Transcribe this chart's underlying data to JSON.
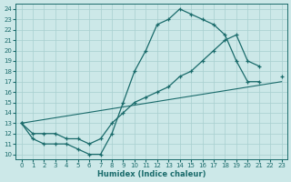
{
  "xlabel": "Humidex (Indice chaleur)",
  "bg_color": "#cce8e8",
  "grid_color": "#a8cfcf",
  "line_color": "#1a6b6b",
  "xlim": [
    -0.5,
    23.5
  ],
  "ylim": [
    9.5,
    24.5
  ],
  "xticks": [
    0,
    1,
    2,
    3,
    4,
    5,
    6,
    7,
    8,
    9,
    10,
    11,
    12,
    13,
    14,
    15,
    16,
    17,
    18,
    19,
    20,
    21,
    22,
    23
  ],
  "yticks": [
    10,
    11,
    12,
    13,
    14,
    15,
    16,
    17,
    18,
    19,
    20,
    21,
    22,
    23,
    24
  ],
  "line1_x": [
    0,
    1,
    2,
    3,
    4,
    5,
    6,
    7,
    8,
    9,
    10,
    11,
    12,
    13,
    14,
    15,
    16,
    17,
    18,
    19,
    20,
    21
  ],
  "line1_y": [
    13,
    11.5,
    11,
    11,
    11,
    10.5,
    10,
    10,
    12,
    15,
    18,
    20,
    22.5,
    23,
    24,
    23.5,
    23,
    22.5,
    21.5,
    19,
    17,
    17
  ],
  "line2_x": [
    0,
    1,
    2,
    3,
    4,
    5,
    6,
    7,
    8,
    9,
    10,
    11,
    12,
    13,
    14,
    15,
    16,
    17,
    18,
    19,
    20,
    21,
    22,
    23
  ],
  "line2_y": [
    13,
    12,
    12,
    12,
    11.5,
    11.5,
    11,
    11.5,
    13,
    14,
    15,
    15.5,
    16,
    16.5,
    17.5,
    18,
    19,
    20,
    21,
    21.5,
    19,
    18.5,
    null,
    17.5
  ],
  "line3_x": [
    0,
    23
  ],
  "line3_y": [
    13,
    17
  ]
}
